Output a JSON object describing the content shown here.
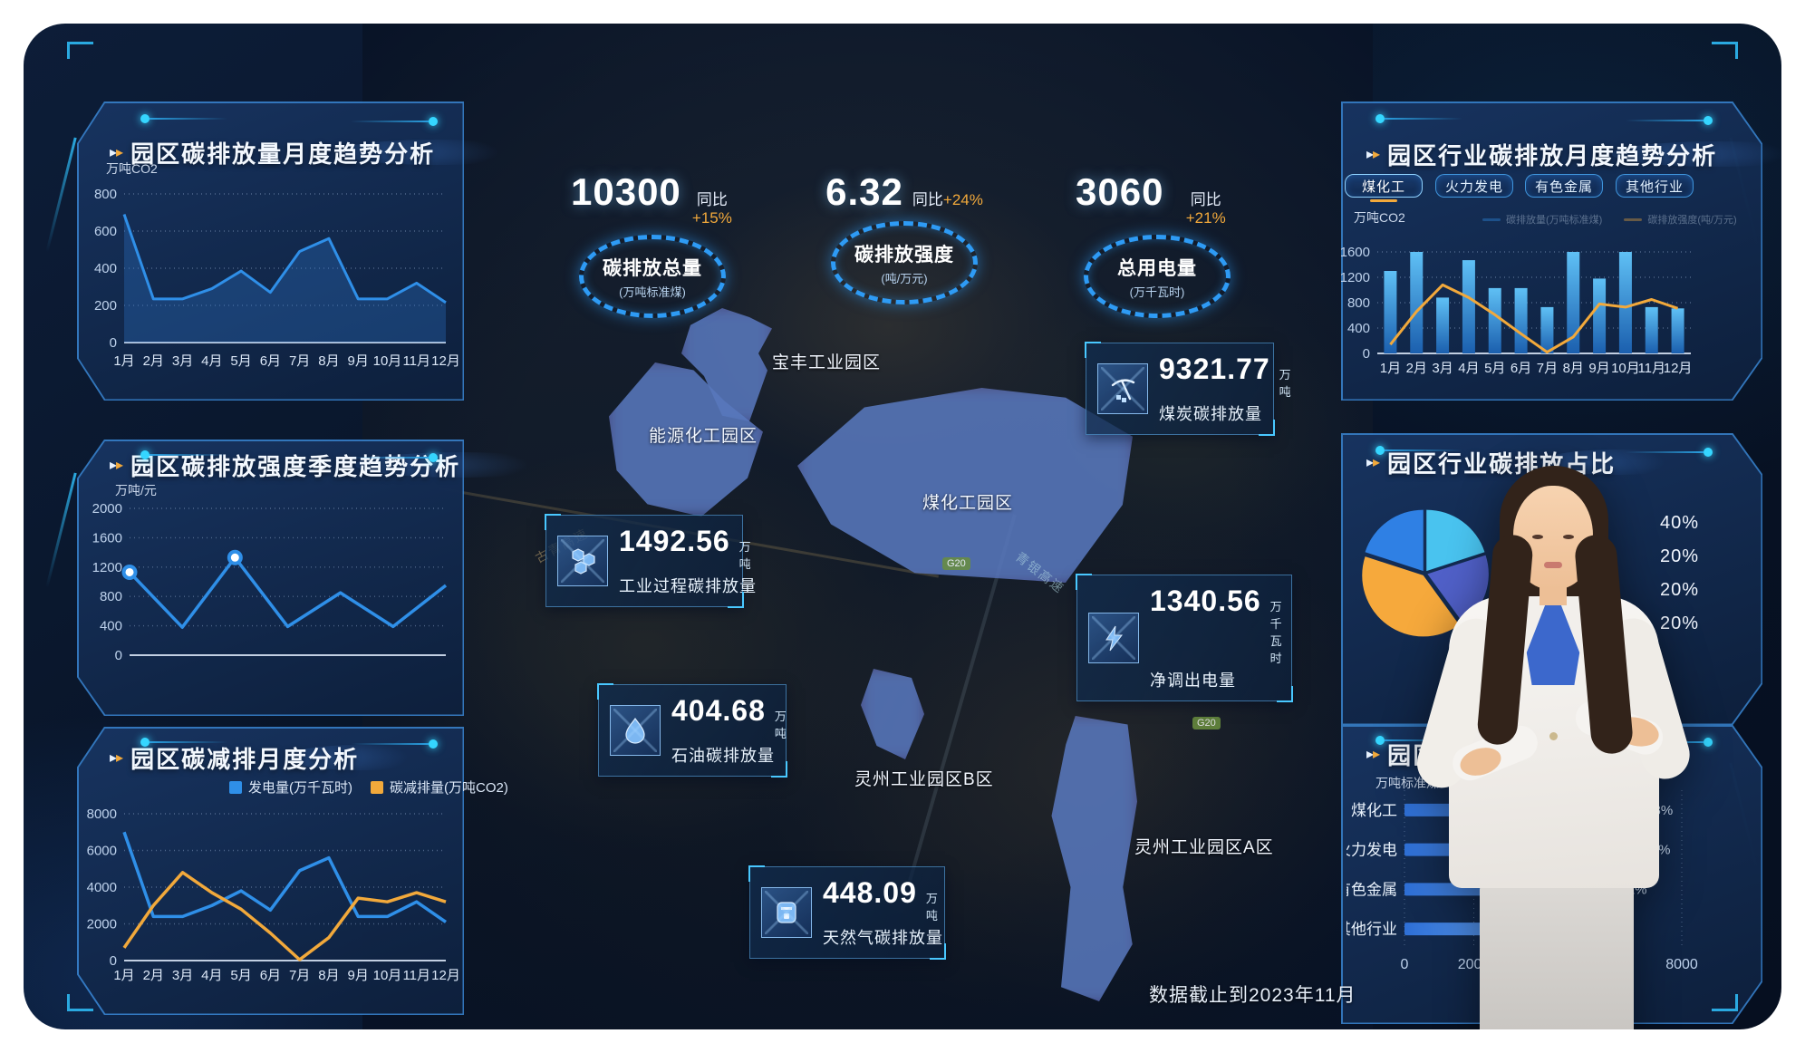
{
  "colors": {
    "accent_cyan": "#35d6ff",
    "accent_orange": "#f2a93b",
    "line_blue": "#2f8fe8",
    "panel_border": "#2f86e0"
  },
  "status": {
    "data_note": "数据截止到2023年11月"
  },
  "kpis": [
    {
      "value": "10300",
      "yoy_label": "同比",
      "yoy_value": "+15%",
      "name": "碳排放总量",
      "unit": "(万吨标准煤)"
    },
    {
      "value": "6.32",
      "yoy_label": "同比",
      "yoy_value": "+24%",
      "name": "碳排放强度",
      "unit": "(吨/万元)"
    },
    {
      "value": "3060",
      "yoy_label": "同比",
      "yoy_value": "+21%",
      "name": "总用电量",
      "unit": "(万千瓦时)"
    }
  ],
  "left_panels": {
    "monthly_trend": {
      "title": "园区碳排放量月度趋势分析",
      "ylabel": "万吨CO2"
    },
    "intensity_quarterly": {
      "title": "园区碳排放强度季度趋势分析",
      "ylabel": "万吨/元"
    },
    "reduction_monthly": {
      "title": "园区碳减排月度分析"
    }
  },
  "right_panels": {
    "industry_monthly": {
      "title": "园区行业碳排放月度趋势分析",
      "ylabel": "万吨CO2",
      "tabs": [
        {
          "label": "煤化工",
          "active": true
        },
        {
          "label": "火力发电",
          "active": false
        },
        {
          "label": "有色金属",
          "active": false
        },
        {
          "label": "其他行业",
          "active": false
        }
      ]
    },
    "industry_share": {
      "title": "园区行业碳排放占比"
    },
    "industry_ranking": {
      "title": "园区行业",
      "ylabel": "万吨标准煤"
    }
  },
  "map": {
    "regions": [
      {
        "name": "宝丰工业园区"
      },
      {
        "name": "能源化工园区"
      },
      {
        "name": "煤化工园区"
      },
      {
        "name": "灵州工业园区B区"
      },
      {
        "name": "灵州工业园区A区"
      }
    ],
    "road_labels": [
      {
        "text": "G20"
      },
      {
        "text": "G20"
      },
      {
        "text": "青银高速"
      },
      {
        "text": "古青高速"
      }
    ],
    "cards": [
      {
        "id": "coal",
        "value": "9321.77",
        "unit": "万吨",
        "label": "煤炭碳排放量",
        "icon": "pickaxe-icon"
      },
      {
        "id": "industrial-process",
        "value": "1492.56",
        "unit": "万吨",
        "label": "工业过程碳排放量",
        "icon": "molecule-icon"
      },
      {
        "id": "net-power-out",
        "value": "1340.56",
        "unit": "万千瓦时",
        "label": "净调出电量",
        "icon": "lightning-icon"
      },
      {
        "id": "oil",
        "value": "404.68",
        "unit": "万吨",
        "label": "石油碳排放量",
        "icon": "oil-drop-icon"
      },
      {
        "id": "natural-gas",
        "value": "448.09",
        "unit": "万吨",
        "label": "天然气碳排放量",
        "icon": "gas-meter-icon"
      }
    ]
  },
  "chart_data": {
    "park_monthly_emissions": {
      "type": "area",
      "title": "园区碳排放量月度趋势分析",
      "ylabel": "万吨CO2",
      "categories": [
        "1月",
        "2月",
        "3月",
        "4月",
        "5月",
        "6月",
        "7月",
        "8月",
        "9月",
        "10月",
        "11月",
        "12月"
      ],
      "values": [
        690,
        235,
        235,
        290,
        385,
        270,
        490,
        560,
        235,
        235,
        320,
        215
      ],
      "yticks": [
        0,
        200,
        400,
        600,
        800
      ],
      "ylim": [
        0,
        800
      ],
      "line_color": "#2f8fe8",
      "fill_color": "rgba(42,112,196,0.35)"
    },
    "park_intensity_quarterly": {
      "type": "line",
      "title": "园区碳排放强度季度趋势分析",
      "ylabel": "万吨/元",
      "categories": [
        "",
        "",
        "",
        "",
        "",
        "",
        ""
      ],
      "values": [
        1130,
        380,
        1330,
        390,
        850,
        390,
        950
      ],
      "marker_indices": [
        0,
        2
      ],
      "yticks": [
        0,
        400,
        800,
        1200,
        1600,
        2000
      ],
      "ylim": [
        0,
        2000
      ],
      "line_color": "#2f8fe8"
    },
    "park_reduction_monthly": {
      "type": "multiline",
      "title": "园区碳减排月度分析",
      "categories": [
        "1月",
        "2月",
        "3月",
        "4月",
        "5月",
        "6月",
        "7月",
        "8月",
        "9月",
        "10月",
        "11月",
        "12月"
      ],
      "series": [
        {
          "name": "发电量(万千瓦时)",
          "color": "#2f8fe8",
          "values": [
            7000,
            2400,
            2400,
            3000,
            3800,
            2750,
            4900,
            5600,
            2400,
            2400,
            3200,
            2100
          ]
        },
        {
          "name": "碳减排量(万吨CO2)",
          "color": "#f2a93b",
          "values": [
            700,
            3000,
            4800,
            3700,
            2800,
            1500,
            50,
            1250,
            3400,
            3200,
            3700,
            3200
          ]
        }
      ],
      "yticks": [
        0,
        2000,
        4000,
        6000,
        8000
      ],
      "ylim": [
        0,
        8000
      ]
    },
    "industry_monthly": {
      "type": "bar-line",
      "title": "园区行业碳排放月度趋势分析",
      "ylabel": "万吨CO2",
      "categories": [
        "1月",
        "2月",
        "3月",
        "4月",
        "5月",
        "6月",
        "7月",
        "8月",
        "9月",
        "10月",
        "11月",
        "12月"
      ],
      "bars": {
        "name": "碳排放量(万吨标准煤)",
        "color_top": "#5fc0f5",
        "color_bottom": "#1b5fae",
        "values": [
          1300,
          1600,
          880,
          1470,
          1030,
          1030,
          730,
          1600,
          1180,
          1600,
          730,
          710
        ]
      },
      "line": {
        "name": "碳排放强度(吨/万元)",
        "color": "#f2a93b",
        "values": [
          140,
          660,
          1080,
          880,
          610,
          310,
          20,
          260,
          780,
          730,
          850,
          710
        ]
      },
      "yticks": [
        0,
        400,
        800,
        1200,
        1600
      ],
      "ylim": [
        0,
        1600
      ]
    },
    "industry_share_pie": {
      "type": "pie",
      "title": "园区行业碳排放占比",
      "slices": [
        {
          "color": "#49c3ef",
          "value": 20
        },
        {
          "color": "#5060c8",
          "value": 20
        },
        {
          "color": "#f6a93c",
          "value": 40
        },
        {
          "color": "#2f80e4",
          "value": 20
        }
      ],
      "percent_labels": [
        "40%",
        "20%",
        "20%",
        "20%"
      ],
      "start_angle": -90
    },
    "industry_ranking": {
      "type": "hbar",
      "title": "园区行业",
      "unit": "万吨标准煤",
      "categories": [
        "煤化工",
        "火力发电",
        "有色金属",
        "其他行业"
      ],
      "values": [
        6750,
        6680,
        6000,
        4920
      ],
      "labels": [
        "38%",
        "31%",
        "22%",
        "19%"
      ],
      "xticks": [
        0,
        2000,
        4000,
        6000,
        8000
      ],
      "xlim": [
        0,
        8000
      ],
      "bar_color_left": "#2e6fd6",
      "bar_color_right": "#78b4f6"
    }
  }
}
